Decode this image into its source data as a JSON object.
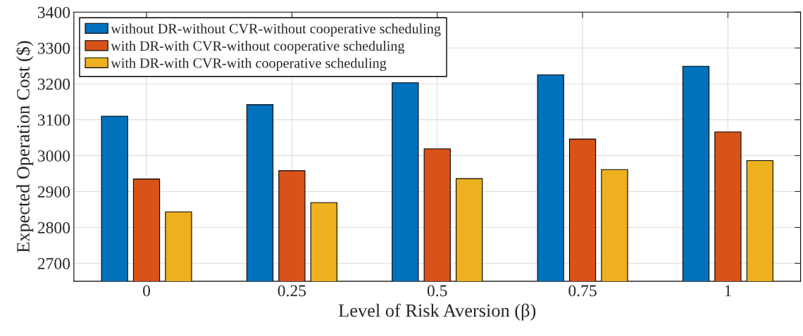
{
  "chart_data": {
    "type": "bar",
    "xlabel": "Level of Risk Aversion (β)",
    "ylabel": "Expected Operation Cost ($)",
    "categories": [
      "0",
      "0.25",
      "0.5",
      "0.75",
      "1"
    ],
    "series": [
      {
        "name": "without DR-without CVR-without cooperative scheduling",
        "color": "#0072bd",
        "values": [
          3110,
          3142,
          3203,
          3225,
          3249
        ]
      },
      {
        "name": "with DR-with CVR-without cooperative scheduling",
        "color": "#d95319",
        "values": [
          2935,
          2958,
          3019,
          3046,
          3066
        ]
      },
      {
        "name": "with DR-with CVR-with cooperative scheduling",
        "color": "#edb120",
        "values": [
          2843,
          2869,
          2936,
          2961,
          2986
        ]
      }
    ],
    "ylim": [
      2650,
      3400
    ],
    "yticks": [
      2700,
      2800,
      2900,
      3000,
      3100,
      3200,
      3300,
      3400
    ],
    "grid": true,
    "legend": "top left"
  }
}
